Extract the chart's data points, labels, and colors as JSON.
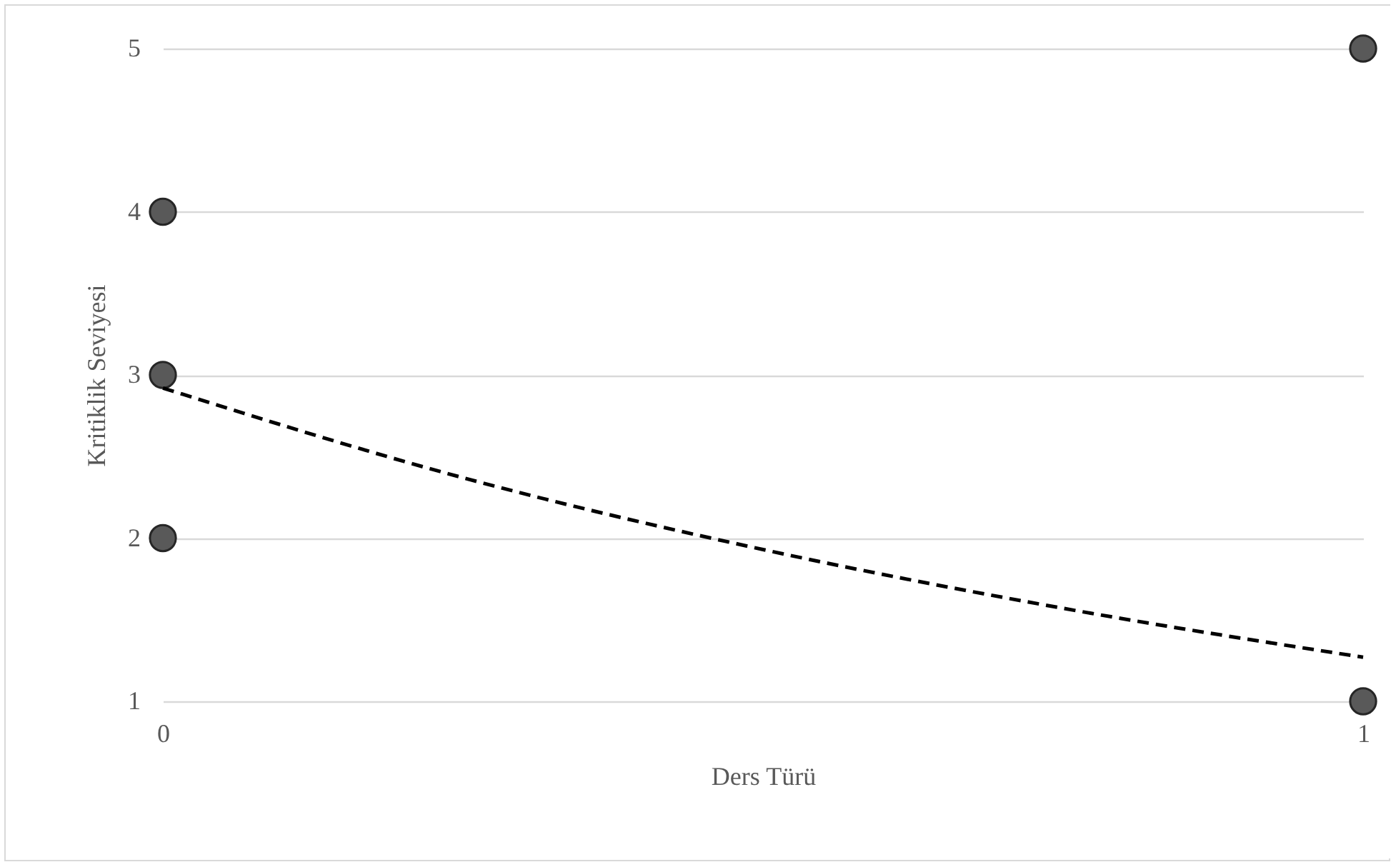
{
  "chart_data": {
    "type": "scatter",
    "xlabel": "Ders Türü",
    "ylabel": "Kritiklik Seviyesi",
    "xlim": [
      0,
      1
    ],
    "xticks": [
      0,
      1
    ],
    "ylim": [
      1,
      5
    ],
    "yticks": [
      1,
      2,
      3,
      4,
      5
    ],
    "grid": "y",
    "marker": "circle",
    "series": [
      {
        "color": "#595959",
        "x": [
          0,
          0,
          0,
          1,
          1
        ],
        "values": [
          4,
          3,
          2,
          5,
          1
        ]
      },
      {
        "type": "line",
        "marker": "none",
        "color": "#000000",
        "line_style": "dashed",
        "x": [
          0,
          0.25,
          0.5,
          0.75,
          1
        ],
        "values": [
          2.92,
          2.37,
          1.93,
          1.57,
          1.27
        ]
      }
    ]
  }
}
